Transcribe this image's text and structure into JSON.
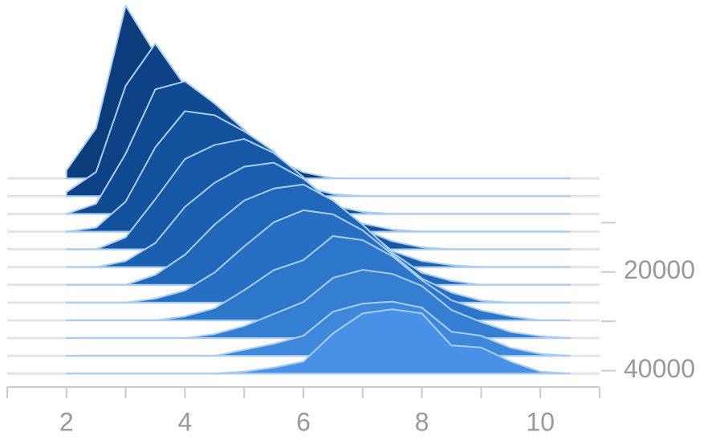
{
  "chart_data": {
    "type": "ridgeline",
    "x": [
      2,
      2.5,
      3,
      3.5,
      4,
      4.5,
      5,
      5.5,
      6,
      6.5,
      7,
      7.5,
      8,
      8.5,
      9,
      9.5,
      10,
      10.5
    ],
    "xlim": [
      1,
      11
    ],
    "xticks": [
      2,
      4,
      6,
      8,
      10
    ],
    "minor_xticks": [
      1,
      3,
      5,
      7,
      9,
      11
    ],
    "ylim": [
      0,
      43000
    ],
    "yticks": [
      20000,
      40000
    ],
    "minor_yticks": [
      10000,
      30000
    ],
    "zlim": [
      0,
      1
    ],
    "series": [
      {
        "y": 1000,
        "color": "#0b3c7c",
        "values": [
          0.04,
          0.25,
          0.86,
          0.62,
          0.45,
          0.36,
          0.22,
          0.1,
          0.03,
          0,
          0,
          0,
          0,
          0,
          0,
          0,
          0,
          0
        ]
      },
      {
        "y": 4600,
        "color": "#0d4386",
        "values": [
          0.02,
          0.12,
          0.55,
          0.76,
          0.55,
          0.45,
          0.32,
          0.16,
          0.05,
          0.01,
          0,
          0,
          0,
          0,
          0,
          0,
          0,
          0
        ]
      },
      {
        "y": 8200,
        "color": "#0f4a91",
        "values": [
          0,
          0.05,
          0.3,
          0.62,
          0.66,
          0.55,
          0.42,
          0.26,
          0.12,
          0.04,
          0.01,
          0,
          0,
          0,
          0,
          0,
          0,
          0
        ]
      },
      {
        "y": 11800,
        "color": "#12519b",
        "values": [
          0,
          0.02,
          0.15,
          0.42,
          0.6,
          0.58,
          0.5,
          0.4,
          0.22,
          0.1,
          0.04,
          0.01,
          0,
          0,
          0,
          0,
          0,
          0
        ]
      },
      {
        "y": 15400,
        "color": "#1658a6",
        "values": [
          0,
          0,
          0.06,
          0.25,
          0.45,
          0.52,
          0.55,
          0.48,
          0.36,
          0.2,
          0.1,
          0.04,
          0.01,
          0,
          0,
          0,
          0,
          0
        ]
      },
      {
        "y": 19000,
        "color": "#1b60b0",
        "values": [
          0,
          0,
          0.03,
          0.12,
          0.3,
          0.42,
          0.5,
          0.52,
          0.44,
          0.32,
          0.2,
          0.08,
          0.03,
          0.01,
          0,
          0,
          0,
          0
        ]
      },
      {
        "y": 22600,
        "color": "#2067ba",
        "values": [
          0,
          0,
          0,
          0.05,
          0.15,
          0.3,
          0.42,
          0.48,
          0.5,
          0.42,
          0.3,
          0.16,
          0.06,
          0.02,
          0,
          0,
          0,
          0
        ]
      },
      {
        "y": 26200,
        "color": "#266fc3",
        "values": [
          0,
          0,
          0,
          0.02,
          0.06,
          0.15,
          0.28,
          0.4,
          0.46,
          0.44,
          0.36,
          0.24,
          0.12,
          0.05,
          0.01,
          0,
          0,
          0
        ]
      },
      {
        "y": 29800,
        "color": "#2d77cb",
        "values": [
          0,
          0,
          0,
          0,
          0.02,
          0.06,
          0.15,
          0.25,
          0.3,
          0.42,
          0.4,
          0.32,
          0.2,
          0.1,
          0.05,
          0.02,
          0,
          0
        ]
      },
      {
        "y": 33400,
        "color": "#357fd3",
        "values": [
          0,
          0,
          0,
          0,
          0,
          0.02,
          0.06,
          0.12,
          0.18,
          0.3,
          0.34,
          0.32,
          0.26,
          0.14,
          0.08,
          0.03,
          0.01,
          0
        ]
      },
      {
        "y": 37000,
        "color": "#3e88dc",
        "values": [
          0,
          0,
          0,
          0,
          0,
          0,
          0.03,
          0.06,
          0.1,
          0.22,
          0.26,
          0.27,
          0.24,
          0.12,
          0.1,
          0.04,
          0.01,
          0
        ]
      },
      {
        "y": 40600,
        "color": "#4891e6",
        "values": [
          0,
          0,
          0,
          0,
          0,
          0,
          0.01,
          0.03,
          0.06,
          0.2,
          0.3,
          0.32,
          0.3,
          0.14,
          0.13,
          0.06,
          0.01,
          0
        ]
      }
    ]
  }
}
